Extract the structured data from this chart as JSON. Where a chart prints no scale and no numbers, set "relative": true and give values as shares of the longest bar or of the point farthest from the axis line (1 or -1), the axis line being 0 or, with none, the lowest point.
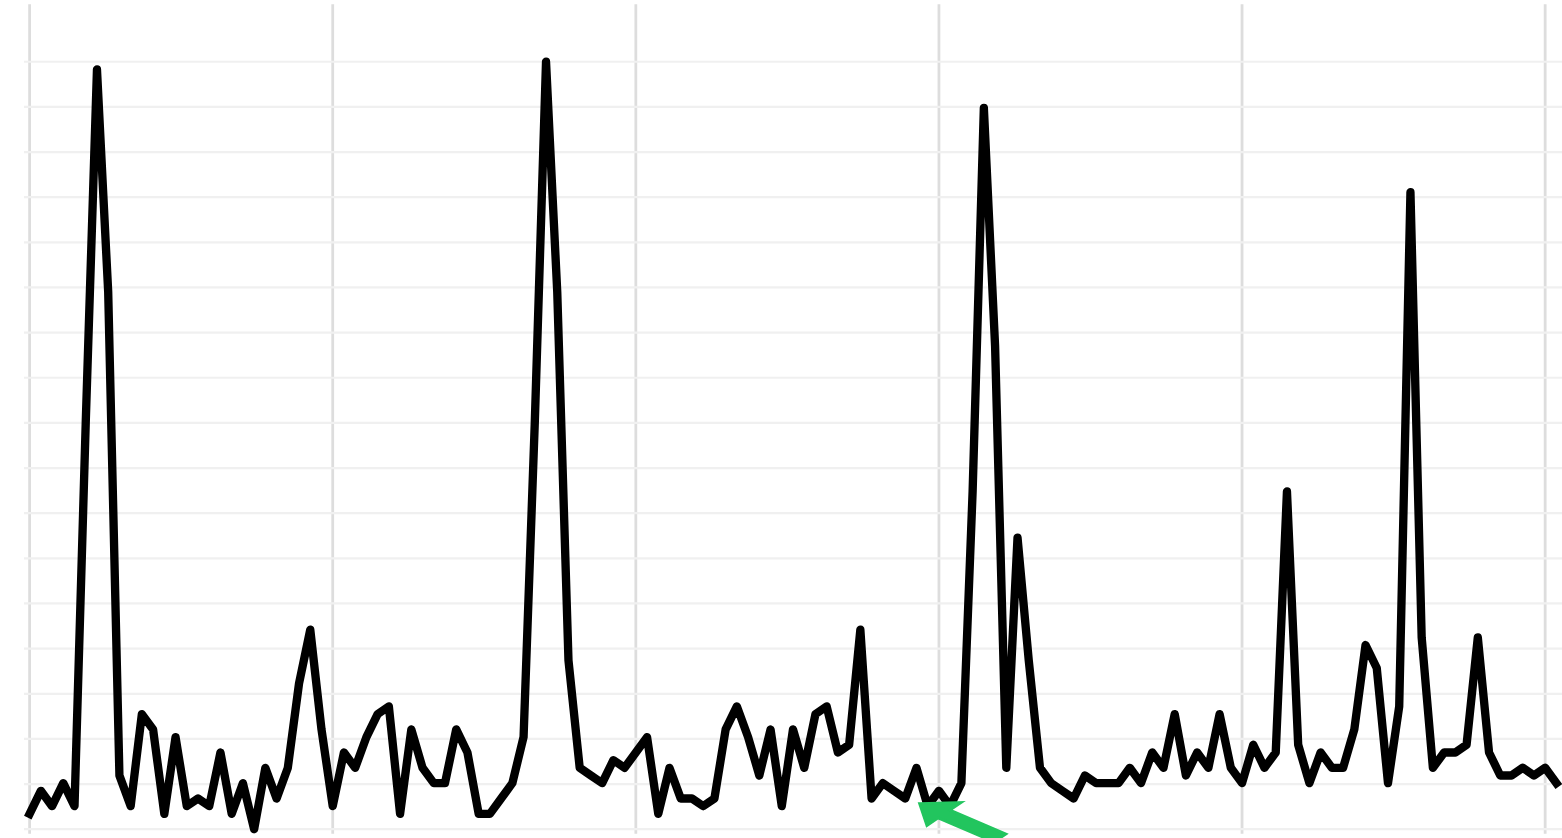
{
  "chart_data": {
    "type": "line",
    "relative": true,
    "grid": true,
    "marker": "none",
    "line_style": "solid",
    "categories": [
      null,
      null,
      null,
      null,
      null,
      null,
      null,
      null,
      null,
      null,
      null,
      null,
      null,
      null,
      null,
      null,
      null,
      null,
      null,
      null,
      null,
      null,
      null,
      null,
      null,
      null,
      null,
      null,
      null,
      null,
      null,
      null,
      null,
      null,
      null,
      null,
      null,
      null,
      null,
      null,
      null,
      null,
      null,
      null,
      null,
      null,
      null,
      null,
      null,
      null,
      null,
      null,
      null,
      null,
      null,
      null,
      null,
      null,
      null,
      null,
      null,
      null,
      null,
      null,
      null,
      null,
      null,
      null,
      null,
      null,
      null,
      null,
      null,
      null,
      null,
      null,
      null,
      null,
      null,
      null,
      null,
      null,
      null,
      null,
      null,
      null,
      null,
      null,
      null,
      null,
      null,
      null,
      null,
      null,
      null,
      null,
      null,
      null,
      null,
      null,
      null,
      null,
      null,
      null,
      null,
      null,
      null,
      null,
      null,
      null,
      null,
      null,
      null,
      null,
      null,
      null,
      null,
      null,
      null,
      null,
      null,
      null,
      null,
      null,
      null,
      null,
      null,
      null,
      null,
      null,
      null,
      null,
      null,
      null,
      null,
      null,
      null
    ],
    "series": [
      {
        "color": "#000000",
        "values": [
          0.02,
          0.05,
          0.03,
          0.06,
          0.03,
          0.53,
          0.99,
          0.7,
          0.07,
          0.03,
          0.15,
          0.13,
          0.02,
          0.12,
          0.03,
          0.04,
          0.03,
          0.1,
          0.02,
          0.06,
          0,
          0.08,
          0.04,
          0.08,
          0.19,
          0.26,
          0.13,
          0.03,
          0.1,
          0.08,
          0.12,
          0.15,
          0.16,
          0.02,
          0.13,
          0.08,
          0.06,
          0.06,
          0.13,
          0.1,
          0.02,
          0.02,
          0.04,
          0.06,
          0.12,
          0.53,
          1,
          0.7,
          0.22,
          0.08,
          0.07,
          0.06,
          0.09,
          0.08,
          0.1,
          0.12,
          0.02,
          0.08,
          0.04,
          0.04,
          0.03,
          0.04,
          0.13,
          0.16,
          0.12,
          0.07,
          0.13,
          0.03,
          0.13,
          0.08,
          0.15,
          0.16,
          0.1,
          0.11,
          0.26,
          0.04,
          0.06,
          0.05,
          0.04,
          0.08,
          0.03,
          0.05,
          0.03,
          0.06,
          0.44,
          0.94,
          0.63,
          0.08,
          0.38,
          0.22,
          0.08,
          0.06,
          0.05,
          0.04,
          0.07,
          0.06,
          0.06,
          0.06,
          0.08,
          0.06,
          0.1,
          0.08,
          0.15,
          0.07,
          0.1,
          0.08,
          0.15,
          0.08,
          0.06,
          0.11,
          0.08,
          0.1,
          0.44,
          0.11,
          0.06,
          0.1,
          0.08,
          0.08,
          0.13,
          0.24,
          0.21,
          0.06,
          0.16,
          0.83,
          0.25,
          0.08,
          0.1,
          0.1,
          0.11,
          0.25,
          0.1,
          0.07,
          0.07,
          0.08,
          0.07,
          0.08,
          0.06
        ]
      }
    ]
  }
}
